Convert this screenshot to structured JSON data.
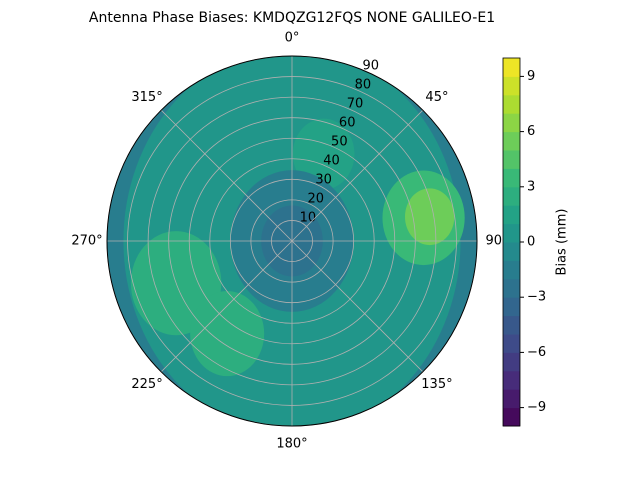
{
  "chart_data": {
    "type": "polar-contour",
    "title": "Antenna Phase Biases: KMDQZG12FQS      NONE GALILEO-E1",
    "colorbar_label": "Bias (mm)",
    "rlim": [
      0,
      90
    ],
    "rticks": [
      10,
      20,
      30,
      40,
      50,
      60,
      70,
      80,
      90
    ],
    "thetaticks": [
      {
        "value": 0,
        "label": "0°"
      },
      {
        "value": 45,
        "label": "45°"
      },
      {
        "value": 90,
        "label": "90°"
      },
      {
        "value": 135,
        "label": "135°"
      },
      {
        "value": 180,
        "label": "180°"
      },
      {
        "value": 225,
        "label": "225°"
      },
      {
        "value": 270,
        "label": "270°"
      },
      {
        "value": 315,
        "label": "315°"
      }
    ],
    "clim": [
      -10,
      10
    ],
    "cticks": [
      {
        "value": -9,
        "label": "−9"
      },
      {
        "value": -6,
        "label": "−6"
      },
      {
        "value": -3,
        "label": "−3"
      },
      0,
      3,
      6,
      9
    ],
    "levels": [
      -10,
      -9,
      -8,
      -7,
      -6,
      -5,
      -4,
      -3,
      -2,
      -1,
      0,
      1,
      2,
      3,
      4,
      5,
      6,
      7,
      8,
      9,
      10
    ],
    "grid": true,
    "regions": [
      {
        "azimuth": 0,
        "zenith": 0,
        "radius": 90,
        "value": -2
      },
      {
        "azimuth": 0,
        "zenith": 0,
        "radius": 82,
        "value": 0
      },
      {
        "azimuth": 80,
        "zenith": 65,
        "radius": 20,
        "value": 3
      },
      {
        "azimuth": 80,
        "zenith": 68,
        "radius": 12,
        "value": 5
      },
      {
        "azimuth": 250,
        "zenith": 60,
        "radius": 22,
        "value": 2
      },
      {
        "azimuth": 215,
        "zenith": 55,
        "radius": 18,
        "value": 2
      },
      {
        "azimuth": 20,
        "zenith": 45,
        "radius": 15,
        "value": 1
      },
      {
        "azimuth": 0,
        "zenith": 0,
        "radius": 30,
        "value": -2
      },
      {
        "azimuth": 0,
        "zenith": 0,
        "radius": 15,
        "value": -3
      }
    ]
  }
}
